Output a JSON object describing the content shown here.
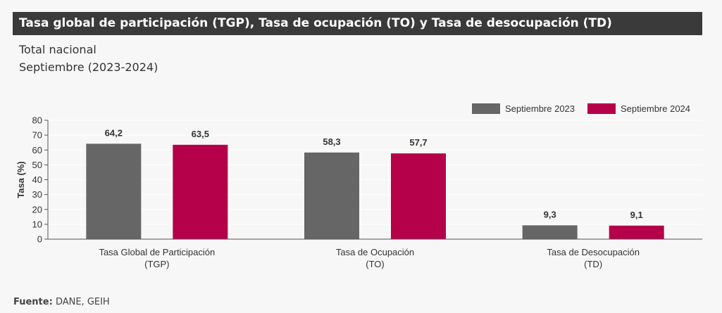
{
  "header": {
    "title": "Tasa global de participación (TGP), Tasa de ocupación (TO) y Tasa de desocupación (TD)",
    "subtitle_line1": "Total nacional",
    "subtitle_line2": "Septiembre (2023-2024)"
  },
  "footer": {
    "source_label": "Fuente:",
    "source_value": "DANE, GEIH"
  },
  "chart_data": {
    "type": "bar",
    "categories": [
      [
        "Tasa Global de Participación",
        "(TGP)"
      ],
      [
        "Tasa de Ocupación",
        "(TO)"
      ],
      [
        "Tasa de Desocupación",
        "(TD)"
      ]
    ],
    "series": [
      {
        "name": "Septiembre 2023",
        "values": [
          64.2,
          58.3,
          9.3
        ],
        "labels": [
          "64,2",
          "58,3",
          "9,3"
        ],
        "color": "#666666"
      },
      {
        "name": "Septiembre 2024",
        "values": [
          63.5,
          57.7,
          9.1
        ],
        "labels": [
          "63,5",
          "57,7",
          "9,1"
        ],
        "color": "#b5004a"
      }
    ],
    "ylabel": "Tasa (%)",
    "xlabel": "",
    "ylim": [
      0,
      80
    ],
    "yticks": [
      0,
      10,
      20,
      30,
      40,
      50,
      60,
      70,
      80
    ],
    "grid": true,
    "legend_position": "top-right"
  }
}
